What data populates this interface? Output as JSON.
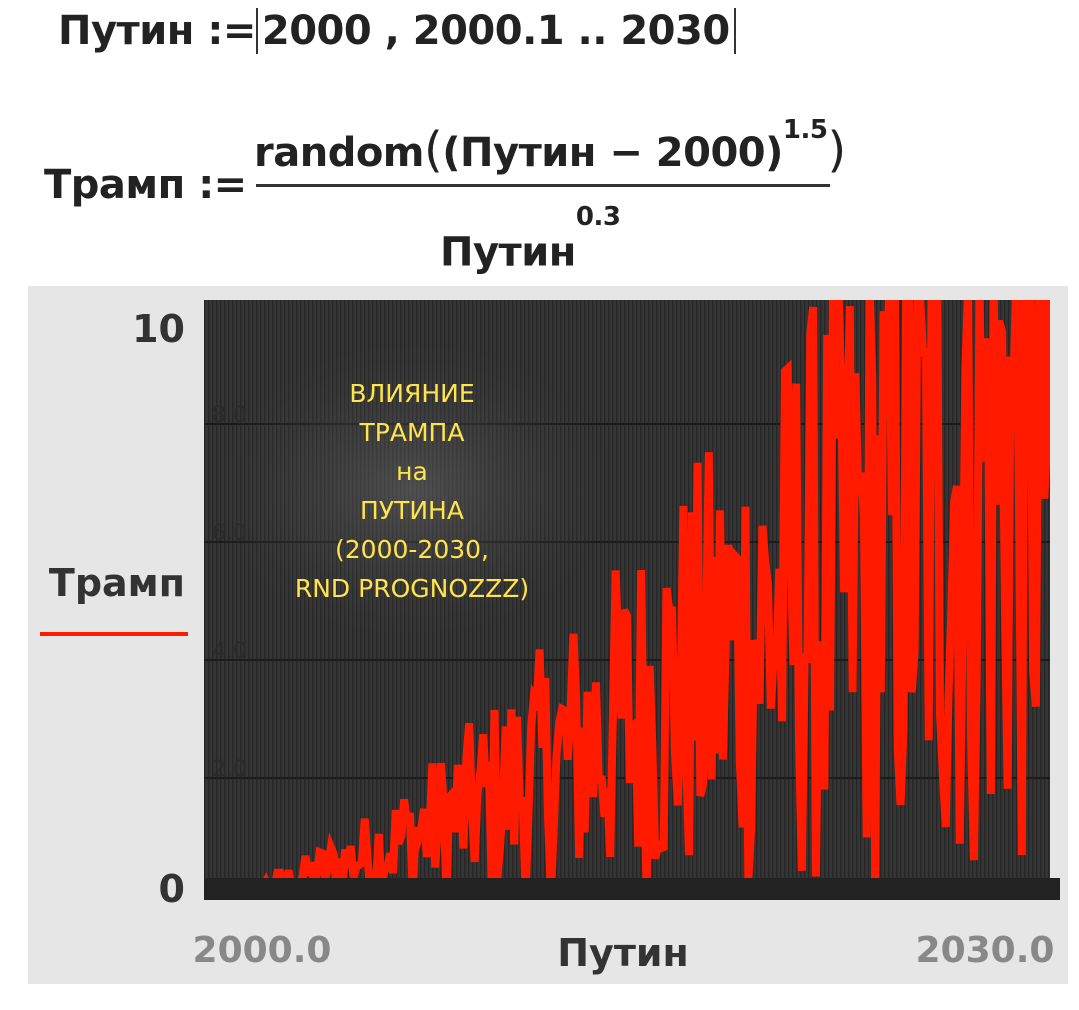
{
  "formulas": {
    "line1": {
      "var": "Путин",
      "assign": ":=",
      "range_text": "2000 , 2000.1 .. 2030"
    },
    "line2": {
      "var": "Трамп",
      "assign": ":=",
      "numerator_fn": "random",
      "numerator_inner": "(Путин − 2000)",
      "numerator_exp": "1.5",
      "denominator": "Путин",
      "denominator_exp": "0.3"
    }
  },
  "chart_data": {
    "type": "line",
    "title": "ВЛИЯНИЕ ТРАМПА на ПУТИНА (2000-2030, RND PROGNOZZZ)",
    "title_lines": [
      "ВЛИЯНИЕ",
      "ТРАМПА",
      "на",
      "ПУТИНА",
      "(2000-2030,",
      "RND PROGNOZZZ)"
    ],
    "xlabel": "Путин",
    "ylabel": "Трамп",
    "xlim": [
      2000,
      2030
    ],
    "ylim": [
      0,
      10
    ],
    "x_tick_labels": [
      "2000.0",
      "2030.0"
    ],
    "y_tick_labels": [
      "0",
      "10"
    ],
    "y_grid_labels": [
      "2.0",
      "4.0",
      "6.0",
      "8.0"
    ],
    "y_grid_values": [
      2,
      4,
      6,
      8
    ],
    "grid": true,
    "series": [
      {
        "name": "Трамп",
        "color": "#ff1a00",
        "formula": "random((x-2000)^1.5)/x^0.3",
        "x_start": 2000,
        "x_step": 0.1,
        "x_end": 2030
      }
    ],
    "legend": "left"
  },
  "colors": {
    "plot_bg": "#353535",
    "panel_bg": "#e6e6e6",
    "series": "#ff1a00",
    "title": "#ffe44d"
  }
}
